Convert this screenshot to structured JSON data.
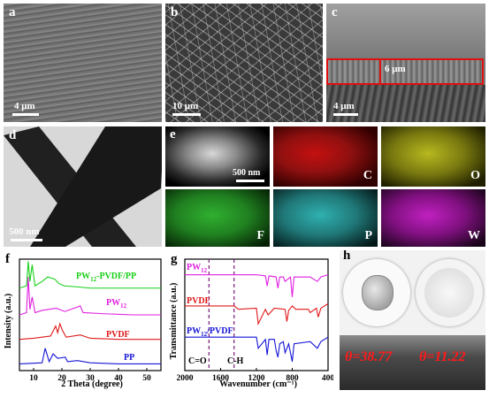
{
  "panels": {
    "a": {
      "label": "a",
      "scale": "4 μm"
    },
    "b": {
      "label": "b",
      "scale": "10 μm"
    },
    "c": {
      "label": "c",
      "scale": "4 μm",
      "thickness": "6 μm"
    },
    "d": {
      "label": "d",
      "scale": "500 nm"
    },
    "e": {
      "label": "e",
      "scale": "500 nm",
      "maps": [
        "C",
        "O",
        "F",
        "P",
        "W"
      ]
    },
    "f": {
      "label": "f"
    },
    "g": {
      "label": "g"
    },
    "h": {
      "label": "h",
      "angle_left": "θ=38.77",
      "angle_right": "θ=11.22"
    }
  },
  "colors": {
    "black": "#000000",
    "blue": "#1515d6",
    "red": "#e01818",
    "magenta": "#e020e0",
    "green": "#18d018",
    "C_map": "#d01010",
    "O_map": "#d8d820",
    "F_map": "#20c020",
    "P_map": "#30c8c8",
    "W_map": "#d020d0"
  },
  "chart_data": [
    {
      "type": "line",
      "panel": "f",
      "xlabel": "2 Theta (degree)",
      "ylabel": "Intensity (a.u.)",
      "xlim": [
        5,
        55
      ],
      "xticks": [
        "10",
        "20",
        "30",
        "40",
        "50"
      ],
      "series": [
        {
          "name": "PW12-PVDF/PP",
          "color": "green",
          "x": [
            5,
            7.5,
            8.1,
            8.7,
            9.5,
            10.5,
            13,
            15,
            17.5,
            19,
            21,
            26,
            30,
            35,
            45,
            55
          ],
          "y": [
            0.74,
            0.76,
            0.98,
            0.8,
            0.95,
            0.76,
            0.8,
            0.84,
            0.82,
            0.78,
            0.76,
            0.75,
            0.74,
            0.74,
            0.74,
            0.74
          ]
        },
        {
          "name": "PW12",
          "color": "magenta",
          "x": [
            5,
            7.5,
            8.1,
            8.7,
            9.5,
            10.5,
            13,
            18,
            21,
            26.5,
            27.5,
            35,
            45,
            55
          ],
          "y": [
            0.5,
            0.52,
            0.84,
            0.55,
            0.66,
            0.52,
            0.54,
            0.56,
            0.53,
            0.58,
            0.52,
            0.51,
            0.5,
            0.5
          ]
        },
        {
          "name": "PVDF",
          "color": "red",
          "x": [
            5,
            10,
            16,
            17.8,
            18.5,
            19.3,
            20.2,
            21.5,
            26.5,
            30,
            40,
            55
          ],
          "y": [
            0.28,
            0.29,
            0.31,
            0.4,
            0.34,
            0.42,
            0.36,
            0.3,
            0.32,
            0.29,
            0.28,
            0.28
          ]
        },
        {
          "name": "PP",
          "color": "blue",
          "x": [
            5,
            13,
            14.1,
            15.5,
            16.9,
            18.5,
            21.2,
            22,
            25.5,
            30,
            40,
            55
          ],
          "y": [
            0.06,
            0.07,
            0.2,
            0.08,
            0.15,
            0.11,
            0.12,
            0.08,
            0.09,
            0.07,
            0.06,
            0.06
          ]
        }
      ]
    },
    {
      "type": "line",
      "panel": "g",
      "xlabel": "Wavenumber (cm⁻¹)",
      "ylabel": "Transmittance (a.u.)",
      "xlim": [
        2000,
        400
      ],
      "xticks": [
        "2000",
        "1600",
        "1200",
        "800",
        "400"
      ],
      "annotations": [
        "C=O",
        "C-H"
      ],
      "vlines": [
        1730,
        1450
      ],
      "series": [
        {
          "name": "PW12",
          "color": "magenta",
          "x": [
            2000,
            1200,
            1100,
            1080,
            1060,
            980,
            960,
            940,
            900,
            880,
            820,
            800,
            780,
            600,
            520,
            480,
            400
          ],
          "y": [
            0.86,
            0.86,
            0.85,
            0.76,
            0.85,
            0.84,
            0.74,
            0.84,
            0.84,
            0.8,
            0.84,
            0.66,
            0.84,
            0.84,
            0.8,
            0.84,
            0.86
          ]
        },
        {
          "name": "PVDF",
          "color": "red",
          "x": [
            2000,
            1450,
            1400,
            1200,
            1180,
            1100,
            1070,
            1000,
            880,
            860,
            840,
            800,
            760,
            620,
            600,
            530,
            510,
            480,
            400
          ],
          "y": [
            0.58,
            0.58,
            0.55,
            0.56,
            0.42,
            0.55,
            0.5,
            0.56,
            0.55,
            0.44,
            0.54,
            0.58,
            0.55,
            0.55,
            0.52,
            0.56,
            0.48,
            0.56,
            0.6
          ]
        },
        {
          "name": "PW12/PVDF",
          "color": "blue",
          "x": [
            2000,
            1450,
            1200,
            1180,
            1100,
            1080,
            1060,
            1000,
            980,
            960,
            940,
            900,
            880,
            840,
            800,
            780,
            600,
            520,
            480,
            400
          ],
          "y": [
            0.3,
            0.3,
            0.3,
            0.2,
            0.28,
            0.14,
            0.28,
            0.28,
            0.18,
            0.12,
            0.24,
            0.26,
            0.16,
            0.24,
            0.08,
            0.24,
            0.26,
            0.2,
            0.26,
            0.3
          ]
        }
      ]
    }
  ]
}
